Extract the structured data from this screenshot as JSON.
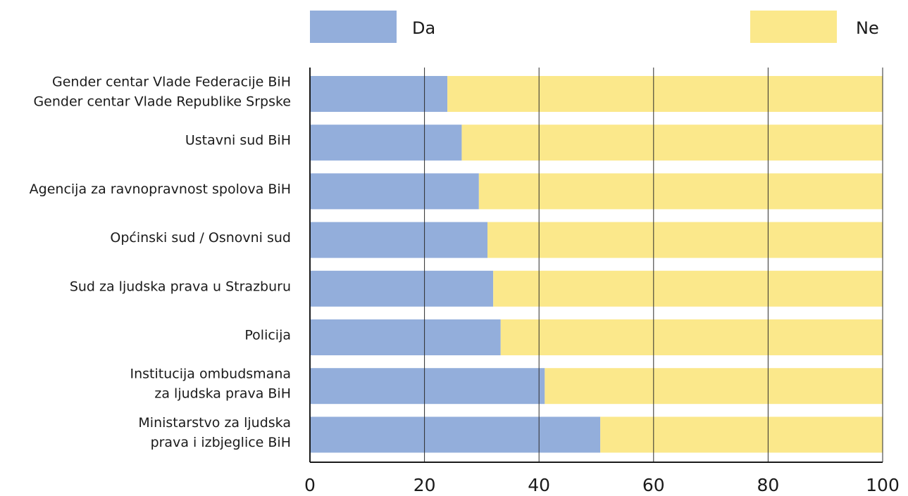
{
  "chart_data": {
    "type": "bar",
    "orientation": "horizontal",
    "stacked": true,
    "title": "",
    "xlabel": "",
    "ylabel": "",
    "xlim": [
      0,
      100
    ],
    "xticks": [
      0,
      20,
      40,
      60,
      80,
      100
    ],
    "grid": true,
    "legend_position": "top",
    "categories": [
      [
        "Gender centar Vlade Federacije BiH",
        "Gender centar Vlade Republike Srpske"
      ],
      [
        "Ustavni sud BiH"
      ],
      [
        "Agencija za ravnopravnost spolova BiH"
      ],
      [
        "Općinski sud / Osnovni sud"
      ],
      [
        "Sud za ljudska prava u Strazburu"
      ],
      [
        "Policija"
      ],
      [
        "Institucija ombudsmana",
        "za ljudska prava BiH"
      ],
      [
        "Ministarstvo za ljudska",
        "prava i izbjeglice BiH"
      ]
    ],
    "series": [
      {
        "name": "Da",
        "color": "#93aedb",
        "values": [
          24,
          26.5,
          29.5,
          31,
          32,
          33.3,
          41,
          50.7
        ]
      },
      {
        "name": "Ne",
        "color": "#fbe88b",
        "values": [
          76,
          73.5,
          70.5,
          69,
          68,
          66.7,
          59,
          49.3
        ]
      }
    ]
  }
}
